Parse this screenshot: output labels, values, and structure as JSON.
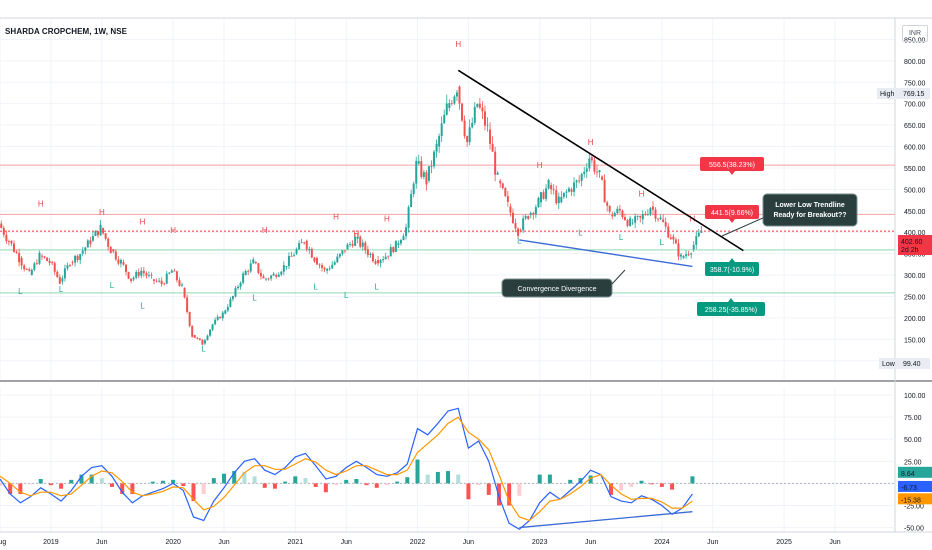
{
  "header": {
    "symbol_title": "SHARDA CROPCHEM, 1W, NSE",
    "currency": "INR"
  },
  "colors": {
    "up": "#26a69a",
    "down": "#ef5350",
    "macd": "#2962ff",
    "signal": "#ff9800",
    "trendline": "#000000",
    "support": "#3b6bd6",
    "price_marker": "#f23645",
    "gain_box": "#f23645",
    "loss_box": "#089981",
    "callout": "#2a3e3e"
  },
  "chart_data": [
    {
      "type": "candlestick",
      "panel": "price",
      "title": "SHARDA CROPCHEM, 1W, NSE",
      "y_ticks": [
        850,
        800,
        750,
        700,
        650,
        600,
        550,
        500,
        450,
        400,
        350,
        300,
        250,
        200,
        150,
        100
      ],
      "y_tick_labels": [
        "850.00",
        "800.00",
        "750.00",
        "700.00",
        "650.00",
        "600.00",
        "550.00",
        "500.00",
        "450.00",
        "400.00",
        "350.00",
        "300.00",
        "250.00",
        "200.00",
        "150.00",
        "100.00"
      ],
      "ylim": [
        55,
        900
      ],
      "x_range": [
        "2018-08",
        "2025-10"
      ],
      "grid": true,
      "ohlc": [
        {
          "date": "2018-08",
          "close": 420
        },
        {
          "date": "2018-09",
          "close": 380
        },
        {
          "date": "2018-10",
          "close": 340
        },
        {
          "date": "2018-11",
          "close": 300
        },
        {
          "date": "2018-12",
          "close": 345
        },
        {
          "date": "2019-01",
          "close": 330
        },
        {
          "date": "2019-02",
          "close": 285
        },
        {
          "date": "2019-03",
          "close": 330
        },
        {
          "date": "2019-04",
          "close": 350
        },
        {
          "date": "2019-05",
          "close": 380
        },
        {
          "date": "2019-06",
          "close": 410
        },
        {
          "date": "2019-07",
          "close": 360
        },
        {
          "date": "2019-08",
          "close": 330
        },
        {
          "date": "2019-09",
          "close": 290
        },
        {
          "date": "2019-10",
          "close": 310
        },
        {
          "date": "2019-11",
          "close": 290
        },
        {
          "date": "2019-12",
          "close": 280
        },
        {
          "date": "2020-01",
          "close": 310
        },
        {
          "date": "2020-02",
          "close": 270
        },
        {
          "date": "2020-03",
          "close": 160
        },
        {
          "date": "2020-04",
          "close": 140
        },
        {
          "date": "2020-05",
          "close": 185
        },
        {
          "date": "2020-06",
          "close": 210
        },
        {
          "date": "2020-07",
          "close": 250
        },
        {
          "date": "2020-08",
          "close": 300
        },
        {
          "date": "2020-09",
          "close": 330
        },
        {
          "date": "2020-10",
          "close": 290
        },
        {
          "date": "2020-11",
          "close": 300
        },
        {
          "date": "2020-12",
          "close": 320
        },
        {
          "date": "2021-01",
          "close": 350
        },
        {
          "date": "2021-02",
          "close": 380
        },
        {
          "date": "2021-03",
          "close": 340
        },
        {
          "date": "2021-04",
          "close": 310
        },
        {
          "date": "2021-05",
          "close": 330
        },
        {
          "date": "2021-06",
          "close": 360
        },
        {
          "date": "2021-07",
          "close": 385
        },
        {
          "date": "2021-08",
          "close": 360
        },
        {
          "date": "2021-09",
          "close": 335
        },
        {
          "date": "2021-10",
          "close": 345
        },
        {
          "date": "2021-11",
          "close": 370
        },
        {
          "date": "2021-12",
          "close": 410
        },
        {
          "date": "2022-01",
          "close": 560
        },
        {
          "date": "2022-02",
          "close": 520
        },
        {
          "date": "2022-03",
          "close": 600
        },
        {
          "date": "2022-04",
          "close": 690
        },
        {
          "date": "2022-05",
          "close": 740
        },
        {
          "date": "2022-06",
          "close": 610
        },
        {
          "date": "2022-07",
          "close": 700
        },
        {
          "date": "2022-08",
          "close": 640
        },
        {
          "date": "2022-09",
          "close": 520
        },
        {
          "date": "2022-10",
          "close": 460
        },
        {
          "date": "2022-11",
          "close": 405
        },
        {
          "date": "2022-12",
          "close": 440
        },
        {
          "date": "2023-01",
          "close": 470
        },
        {
          "date": "2023-02",
          "close": 510
        },
        {
          "date": "2023-03",
          "close": 470
        },
        {
          "date": "2023-04",
          "close": 500
        },
        {
          "date": "2023-05",
          "close": 520
        },
        {
          "date": "2023-06",
          "close": 575
        },
        {
          "date": "2023-07",
          "close": 530
        },
        {
          "date": "2023-08",
          "close": 440
        },
        {
          "date": "2023-09",
          "close": 450
        },
        {
          "date": "2023-10",
          "close": 420
        },
        {
          "date": "2023-11",
          "close": 430
        },
        {
          "date": "2023-12",
          "close": 460
        },
        {
          "date": "2024-01",
          "close": 430
        },
        {
          "date": "2024-02",
          "close": 390
        },
        {
          "date": "2024-03",
          "close": 340
        },
        {
          "date": "2024-04",
          "close": 360
        },
        {
          "date": "2024-05",
          "close": 402.6
        }
      ],
      "annotations": {
        "high_marks": [
          {
            "date": "2018-12",
            "price": 460
          },
          {
            "date": "2019-06",
            "price": 440
          },
          {
            "date": "2019-10",
            "price": 418
          },
          {
            "date": "2020-01",
            "price": 398
          },
          {
            "date": "2020-10",
            "price": 398
          },
          {
            "date": "2021-05",
            "price": 430
          },
          {
            "date": "2021-07",
            "price": 390
          },
          {
            "date": "2021-10",
            "price": 425
          },
          {
            "date": "2022-05",
            "price": 832
          },
          {
            "date": "2023-01",
            "price": 550
          },
          {
            "date": "2023-06",
            "price": 603
          },
          {
            "date": "2023-11",
            "price": 483
          },
          {
            "date": "2024-04",
            "price": 425
          }
        ],
        "low_marks": [
          {
            "date": "2018-10",
            "price": 256
          },
          {
            "date": "2019-02",
            "price": 260
          },
          {
            "date": "2019-07",
            "price": 270
          },
          {
            "date": "2019-10",
            "price": 222
          },
          {
            "date": "2020-04",
            "price": 122
          },
          {
            "date": "2020-09",
            "price": 240
          },
          {
            "date": "2021-03",
            "price": 266
          },
          {
            "date": "2021-06",
            "price": 246
          },
          {
            "date": "2021-09",
            "price": 266
          },
          {
            "date": "2022-11",
            "price": 374
          },
          {
            "date": "2023-05",
            "price": 392
          },
          {
            "date": "2023-09",
            "price": 382
          },
          {
            "date": "2024-01",
            "price": 370
          }
        ],
        "high_letter": "H",
        "low_letter": "L",
        "descending_trendline": {
          "from": {
            "date": "2022-05",
            "price": 778
          },
          "to": {
            "date": "2024-09",
            "price": 357
          }
        },
        "support_trendline": {
          "from": {
            "date": "2022-11",
            "price": 382
          },
          "to": {
            "date": "2024-04",
            "price": 320
          }
        },
        "horizontal_levels": [
          556.5,
          441.5,
          402.6,
          358.7,
          258.25
        ],
        "callouts": {
          "breakout": "Lower Low Trendline\nReady for Breakout??",
          "divergence": "Convergence Divergence"
        },
        "target_boxes": [
          {
            "label": "556.5(38.23%)",
            "price": 556.5,
            "kind": "gain"
          },
          {
            "label": "441.5(9.66%)",
            "price": 441.5,
            "kind": "gain"
          },
          {
            "label": "358.7(-10.9%)",
            "price": 358.7,
            "kind": "loss"
          },
          {
            "label": "258.25(-35.85%)",
            "price": 258.25,
            "kind": "loss"
          }
        ]
      },
      "axis_markers": {
        "high_label": "High",
        "high_value": "769.15",
        "low_label": "Low",
        "low_value": "99.40",
        "last_price": "402.60",
        "countdown": "2d 2h"
      }
    },
    {
      "type": "line",
      "panel": "macd",
      "y_ticks": [
        100,
        75,
        50,
        25,
        0,
        -25,
        -50
      ],
      "y_tick_labels": [
        "100.00",
        "75.00",
        "50.00",
        "25.00",
        "0.00",
        "-25.00",
        "-50.00"
      ],
      "ylim": [
        -55,
        108
      ],
      "series": [
        {
          "values_key": "macd",
          "values": [
            5,
            -12,
            -22,
            -15,
            -5,
            -12,
            -20,
            -8,
            8,
            18,
            20,
            8,
            -10,
            -22,
            -14,
            -10,
            -6,
            0,
            -8,
            -38,
            -42,
            -20,
            -5,
            12,
            25,
            28,
            15,
            10,
            18,
            30,
            34,
            20,
            5,
            8,
            18,
            25,
            18,
            10,
            8,
            12,
            22,
            62,
            55,
            68,
            82,
            85,
            40,
            48,
            25,
            -15,
            -45,
            -52,
            -42,
            -22,
            -10,
            -18,
            -8,
            2,
            15,
            10,
            -15,
            -20,
            -22,
            -14,
            -18,
            -25,
            -35,
            -28,
            -12
          ]
        },
        {
          "values_key": "signal",
          "values": [
            8,
            0,
            -10,
            -14,
            -10,
            -10,
            -14,
            -12,
            -2,
            8,
            14,
            12,
            2,
            -10,
            -14,
            -12,
            -9,
            -4,
            -5,
            -18,
            -30,
            -26,
            -16,
            -2,
            12,
            20,
            20,
            16,
            16,
            22,
            28,
            24,
            15,
            10,
            14,
            20,
            20,
            15,
            10,
            10,
            15,
            35,
            45,
            55,
            68,
            75,
            58,
            50,
            38,
            10,
            -20,
            -38,
            -42,
            -32,
            -20,
            -18,
            -12,
            -4,
            6,
            10,
            -2,
            -12,
            -18,
            -17,
            -17,
            -21,
            -28,
            -28,
            -20
          ]
        }
      ],
      "histogram": [
        -3,
        -12,
        -12,
        -1,
        5,
        -2,
        -6,
        4,
        10,
        10,
        6,
        -4,
        -12,
        -12,
        0,
        2,
        3,
        4,
        -3,
        -20,
        -12,
        6,
        11,
        14,
        13,
        8,
        -5,
        -6,
        2,
        8,
        6,
        -4,
        -10,
        -2,
        4,
        5,
        -2,
        -5,
        -2,
        2,
        7,
        27,
        10,
        13,
        14,
        10,
        -18,
        -2,
        -13,
        -25,
        -25,
        -14,
        0,
        10,
        10,
        0,
        4,
        6,
        9,
        0,
        -13,
        -8,
        -4,
        3,
        -1,
        -4,
        -7,
        0,
        8
      ],
      "tick_values": {
        "histogram": "8.64",
        "macd": "-6.73",
        "signal": "-15.38"
      },
      "divergence_line": {
        "from": {
          "date": "2022-11",
          "value": -50
        },
        "to": {
          "date": "2024-04",
          "value": -32
        }
      }
    }
  ],
  "x_axis": {
    "labels": [
      {
        "text": "Aug",
        "date": "2018-08"
      },
      {
        "text": "2019",
        "date": "2019-01"
      },
      {
        "text": "Jun",
        "date": "2019-06"
      },
      {
        "text": "2020",
        "date": "2020-01"
      },
      {
        "text": "Jun",
        "date": "2020-06"
      },
      {
        "text": "2021",
        "date": "2021-01"
      },
      {
        "text": "Jun",
        "date": "2021-06"
      },
      {
        "text": "2022",
        "date": "2022-01"
      },
      {
        "text": "Jun",
        "date": "2022-06"
      },
      {
        "text": "2023",
        "date": "2023-01"
      },
      {
        "text": "Jun",
        "date": "2023-06"
      },
      {
        "text": "2024",
        "date": "2024-01"
      },
      {
        "text": "Jun",
        "date": "2024-06"
      },
      {
        "text": "2025",
        "date": "2025-01"
      },
      {
        "text": "Jun",
        "date": "2025-06"
      }
    ]
  }
}
